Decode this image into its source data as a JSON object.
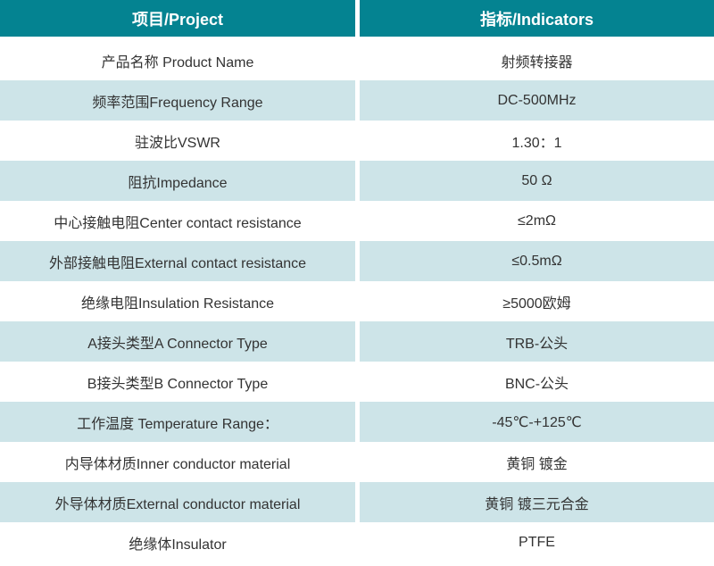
{
  "table": {
    "header": {
      "project": "项目/Project",
      "indicators": "指标/Indicators"
    },
    "rows": [
      {
        "project": "产品名称 Product Name",
        "indicator": "射频转接器"
      },
      {
        "project": "频率范围Frequency Range",
        "indicator": "DC-500MHz"
      },
      {
        "project": "驻波比VSWR",
        "indicator": "1.30：1"
      },
      {
        "project": "阻抗Impedance",
        "indicator": "50 Ω"
      },
      {
        "project": "中心接触电阻Center contact resistance",
        "indicator": "≤2mΩ"
      },
      {
        "project": "外部接触电阻External contact resistance",
        "indicator": "≤0.5mΩ"
      },
      {
        "project": "绝缘电阻Insulation Resistance",
        "indicator": "≥5000欧姆"
      },
      {
        "project": "A接头类型A Connector Type",
        "indicator": "TRB-公头"
      },
      {
        "project": "B接头类型B Connector Type",
        "indicator": "BNC-公头"
      },
      {
        "project": "工作温度 Temperature Range：",
        "indicator": "-45℃-+125℃"
      },
      {
        "project": "内导体材质Inner conductor material",
        "indicator": "黄铜 镀金"
      },
      {
        "project": "外导体材质External conductor material",
        "indicator": "黄铜 镀三元合金"
      },
      {
        "project": "绝缘体Insulator",
        "indicator": "PTFE"
      }
    ],
    "colors": {
      "header_bg": "#048391",
      "header_text": "#ffffff",
      "row_alt_bg": "#cde4e8",
      "text": "#333333"
    }
  }
}
